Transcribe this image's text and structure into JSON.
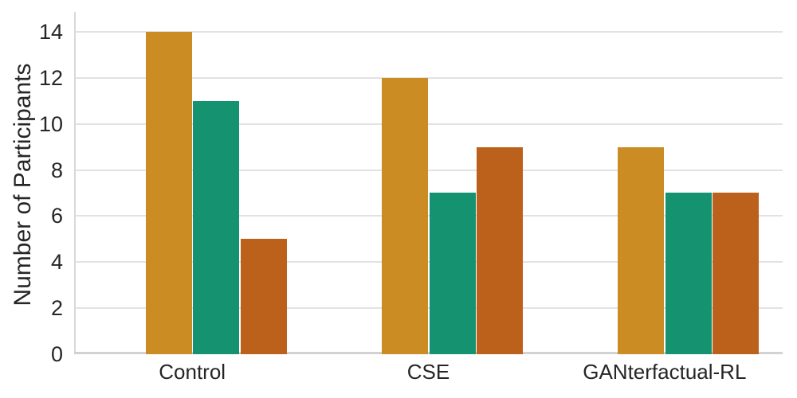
{
  "chart_data": {
    "type": "bar",
    "title": "",
    "categories": [
      "Control",
      "CSE",
      "GANterfactual-RL"
    ],
    "series": [
      {
        "name": "gold",
        "color": "#CB8C24",
        "values": [
          14,
          12,
          9
        ]
      },
      {
        "name": "green",
        "color": "#15926F",
        "values": [
          11,
          7,
          7
        ]
      },
      {
        "name": "orange",
        "color": "#BC611C",
        "values": [
          5,
          9,
          7
        ]
      }
    ],
    "xlabel": "",
    "ylabel": "Number of Participants",
    "yticks": [
      0,
      2,
      4,
      6,
      8,
      10,
      12,
      14
    ],
    "ylim": [
      0,
      14.86
    ],
    "grid": true,
    "legend": "none",
    "colors": {
      "grid": "#e2e2e2",
      "spine": "#d2d2d2",
      "text": "#262626"
    }
  }
}
